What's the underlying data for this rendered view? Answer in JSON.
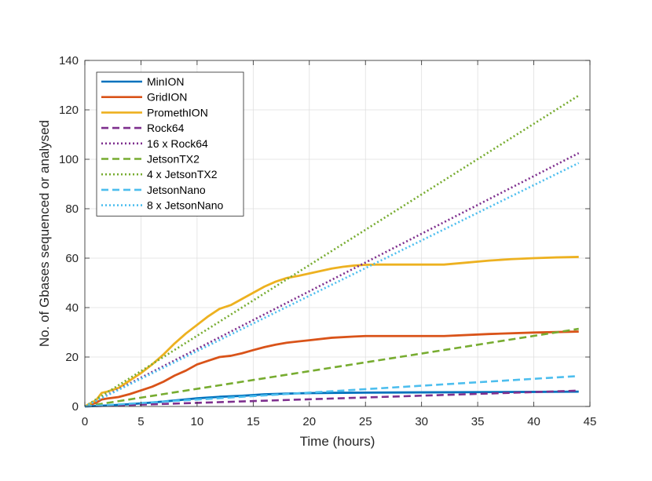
{
  "chart_data": {
    "type": "line",
    "title": "",
    "xlabel": "Time (hours)",
    "ylabel": "No. of Gbases sequenced or analysed",
    "xlim": [
      0,
      45
    ],
    "ylim": [
      0,
      140
    ],
    "xticks": [
      0,
      5,
      10,
      15,
      20,
      25,
      30,
      35,
      40,
      45
    ],
    "yticks": [
      0,
      20,
      40,
      60,
      80,
      100,
      120,
      140
    ],
    "grid": true,
    "legend_position": "top-left",
    "series": [
      {
        "name": "MinION",
        "color": "#0072BD",
        "style": "solid",
        "x": [
          0,
          2,
          4,
          6,
          8,
          10,
          12,
          14,
          16,
          18,
          20,
          22,
          25,
          30,
          35,
          40,
          44
        ],
        "y": [
          0,
          0.4,
          0.9,
          1.6,
          2.4,
          3.3,
          3.9,
          4.3,
          4.9,
          5.2,
          5.4,
          5.5,
          5.6,
          5.7,
          5.8,
          5.9,
          6.0
        ]
      },
      {
        "name": "GridION",
        "color": "#D95319",
        "style": "solid",
        "x": [
          0,
          1,
          1.5,
          2,
          3,
          4,
          5,
          6,
          7,
          8,
          9,
          10,
          11,
          12,
          13,
          14,
          15,
          16,
          17,
          18,
          20,
          22,
          24,
          25,
          28,
          32,
          36,
          40,
          44
        ],
        "y": [
          0,
          1.5,
          2.8,
          3.2,
          3.8,
          5.0,
          6.5,
          8.0,
          10.0,
          12.5,
          14.5,
          17.0,
          18.5,
          20.0,
          20.5,
          21.5,
          22.8,
          24.0,
          25.0,
          25.8,
          26.8,
          27.8,
          28.3,
          28.5,
          28.5,
          28.5,
          29.3,
          29.9,
          30.3
        ]
      },
      {
        "name": "PromethION",
        "color": "#EDB120",
        "style": "solid",
        "x": [
          0,
          1,
          1.5,
          2,
          3,
          4,
          5,
          6,
          7,
          8,
          9,
          10,
          11,
          12,
          13,
          14,
          15,
          16,
          17,
          18,
          19,
          20,
          21,
          22,
          23,
          24,
          25,
          26,
          28,
          30,
          32,
          34,
          36,
          38,
          40,
          42,
          44
        ],
        "y": [
          0,
          2.5,
          5.5,
          6.0,
          7.5,
          10.5,
          13.5,
          17.0,
          21.0,
          25.5,
          29.5,
          33.0,
          36.5,
          39.5,
          41.0,
          43.5,
          46.0,
          48.5,
          50.5,
          52.0,
          52.8,
          53.8,
          54.8,
          55.8,
          56.5,
          57.0,
          57.3,
          57.4,
          57.4,
          57.4,
          57.4,
          58.2,
          59.0,
          59.6,
          60.0,
          60.3,
          60.5
        ]
      },
      {
        "name": "Rock64",
        "color": "#7E2F8E",
        "style": "dashed",
        "x": [
          0,
          44
        ],
        "y": [
          0,
          6.4
        ]
      },
      {
        "name": "16 x Rock64",
        "color": "#7E2F8E",
        "style": "dotted",
        "x": [
          0,
          44
        ],
        "y": [
          0,
          102.5
        ]
      },
      {
        "name": "JetsonTX2",
        "color": "#77AC30",
        "style": "dashed",
        "x": [
          0,
          44
        ],
        "y": [
          0,
          31.4
        ]
      },
      {
        "name": "4 x JetsonTX2",
        "color": "#77AC30",
        "style": "dotted",
        "x": [
          0,
          44
        ],
        "y": [
          0,
          125.8
        ]
      },
      {
        "name": "JetsonNano",
        "color": "#4DBEEE",
        "style": "dashed",
        "x": [
          0,
          44
        ],
        "y": [
          0,
          12.3
        ]
      },
      {
        "name": "8 x JetsonNano",
        "color": "#4DBEEE",
        "style": "dotted",
        "x": [
          0,
          44
        ],
        "y": [
          0,
          98.5
        ]
      }
    ]
  }
}
